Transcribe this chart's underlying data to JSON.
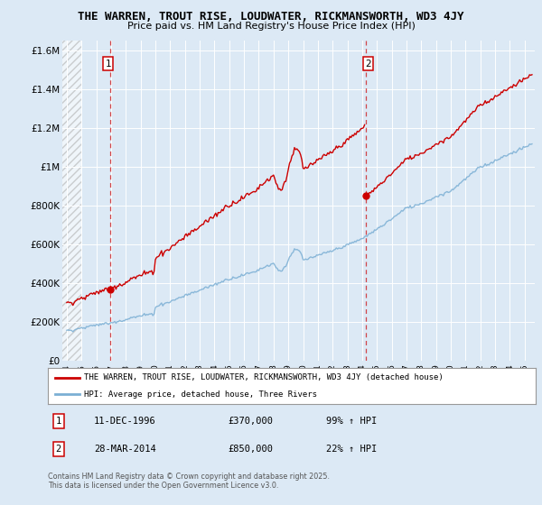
{
  "title": "THE WARREN, TROUT RISE, LOUDWATER, RICKMANSWORTH, WD3 4JY",
  "subtitle": "Price paid vs. HM Land Registry's House Price Index (HPI)",
  "background_color": "#dce9f5",
  "plot_bg_color": "#dce9f5",
  "red_color": "#cc0000",
  "blue_color": "#7bafd4",
  "ylim": [
    0,
    1650000
  ],
  "yticks": [
    0,
    200000,
    400000,
    600000,
    800000,
    1000000,
    1200000,
    1400000,
    1600000
  ],
  "ytick_labels": [
    "£0",
    "£200K",
    "£400K",
    "£600K",
    "£800K",
    "£1M",
    "£1.2M",
    "£1.4M",
    "£1.6M"
  ],
  "xlim_start": 1993.7,
  "xlim_end": 2025.7,
  "sale1_x": 1996.95,
  "sale1_y": 370000,
  "sale1_label": "1",
  "sale2_x": 2014.24,
  "sale2_y": 850000,
  "sale2_label": "2",
  "legend_line1": "THE WARREN, TROUT RISE, LOUDWATER, RICKMANSWORTH, WD3 4JY (detached house)",
  "legend_line2": "HPI: Average price, detached house, Three Rivers",
  "annotation1_date": "11-DEC-1996",
  "annotation1_price": "£370,000",
  "annotation1_hpi": "99% ↑ HPI",
  "annotation2_date": "28-MAR-2014",
  "annotation2_price": "£850,000",
  "annotation2_hpi": "22% ↑ HPI",
  "footer": "Contains HM Land Registry data © Crown copyright and database right 2025.\nThis data is licensed under the Open Government Licence v3.0."
}
